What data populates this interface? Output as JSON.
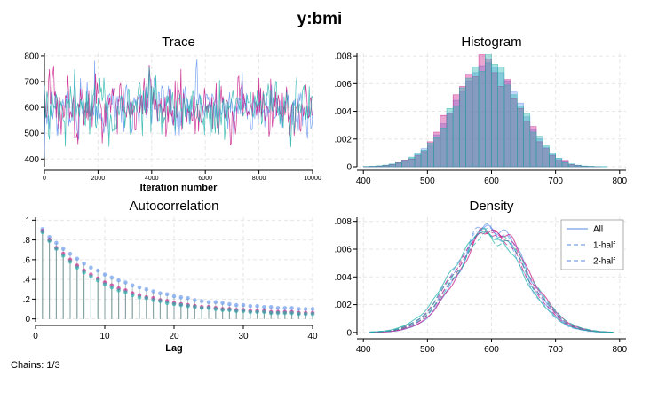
{
  "title": "y:bmi",
  "note": "Chains: 1/3",
  "colors": {
    "chain1": "#6495ed",
    "chain2": "#c71585",
    "chain3": "#20b2aa",
    "grid": "#e6e6e6"
  },
  "chart_data": [
    {
      "id": "trace",
      "type": "line",
      "title": "Trace",
      "xlabel": "Iteration number",
      "ylabel": "",
      "xlim": [
        0,
        10000
      ],
      "ylim": [
        370,
        810
      ],
      "xticks": [
        0,
        2000,
        4000,
        6000,
        8000,
        10000
      ],
      "xtick_labels": [
        "0",
        "2000",
        "4000",
        "6000",
        "8000",
        "10000"
      ],
      "yticks": [
        400,
        500,
        600,
        700,
        800
      ],
      "ytick_labels": [
        "400",
        "500",
        "600",
        "700",
        "800"
      ],
      "series_sim": {
        "mean": 600,
        "sd": 55
      }
    },
    {
      "id": "histogram",
      "type": "bar",
      "title": "Histogram",
      "xlabel": "",
      "ylabel": "",
      "xlim": [
        390,
        810
      ],
      "ylim": [
        0,
        0.0082
      ],
      "xticks": [
        400,
        500,
        600,
        700,
        800
      ],
      "xtick_labels": [
        "400",
        "500",
        "600",
        "700",
        "800"
      ],
      "yticks": [
        0,
        0.002,
        0.004,
        0.006,
        0.008
      ],
      "ytick_labels": [
        "0",
        ".002",
        ".004",
        ".006",
        ".008"
      ],
      "bin_start": 400,
      "bin_width": 10,
      "series": [
        {
          "name": "",
          "values": [
            2e-05,
            4e-05,
            6e-05,
            0.0001,
            0.00015,
            0.00025,
            0.0004,
            0.0006,
            0.0009,
            0.0013,
            0.0016,
            0.0023,
            0.0031,
            0.0039,
            0.0048,
            0.0054,
            0.0062,
            0.0068,
            0.0073,
            0.0075,
            0.0072,
            0.0068,
            0.0062,
            0.0054,
            0.0046,
            0.0036,
            0.0027,
            0.002,
            0.0014,
            0.0009,
            0.0006,
            0.00035,
            0.0002,
            0.0001,
            5e-05,
            3e-05,
            1e-05,
            1e-05,
            0,
            0
          ]
        },
        {
          "name": "",
          "values": [
            1e-05,
            3e-05,
            5e-05,
            0.0001,
            0.00018,
            0.0003,
            0.00045,
            0.00055,
            0.0008,
            0.0011,
            0.0018,
            0.0025,
            0.0037,
            0.0038,
            0.0052,
            0.0058,
            0.0067,
            0.0065,
            0.0081,
            0.0078,
            0.0068,
            0.0058,
            0.0063,
            0.0049,
            0.0042,
            0.0033,
            0.0029,
            0.0018,
            0.0013,
            0.0008,
            0.0005,
            0.0004,
            0.00015,
            8e-05,
            4e-05,
            2e-05,
            1e-05,
            0,
            0,
            0
          ]
        },
        {
          "name": "",
          "values": [
            2e-05,
            3e-05,
            7e-05,
            0.00012,
            0.0002,
            0.00028,
            0.0004,
            0.0007,
            0.001,
            0.0012,
            0.0017,
            0.0021,
            0.0028,
            0.0042,
            0.0044,
            0.0057,
            0.0064,
            0.0072,
            0.0069,
            0.0081,
            0.0074,
            0.0072,
            0.0059,
            0.0052,
            0.0044,
            0.0038,
            0.0025,
            0.0022,
            0.0015,
            0.001,
            0.0006,
            0.0003,
            0.0002,
            0.00012,
            5e-05,
            3e-05,
            1e-05,
            1e-05,
            0,
            0
          ]
        }
      ]
    },
    {
      "id": "autocorrelation",
      "type": "scatter",
      "title": "Autocorrelation",
      "xlabel": "Lag",
      "ylabel": "",
      "xlim": [
        0,
        40
      ],
      "ylim": [
        -0.03,
        1.03
      ],
      "xticks": [
        0,
        10,
        20,
        30,
        40
      ],
      "xtick_labels": [
        "0",
        "10",
        "20",
        "30",
        "40"
      ],
      "yticks": [
        0,
        0.2,
        0.4,
        0.6,
        0.8,
        1
      ],
      "ytick_labels": [
        "0",
        ".2",
        ".4",
        ".6",
        ".8",
        "1"
      ],
      "x": [
        1,
        2,
        3,
        4,
        5,
        6,
        7,
        8,
        9,
        10,
        11,
        12,
        13,
        14,
        15,
        16,
        17,
        18,
        19,
        20,
        21,
        22,
        23,
        24,
        25,
        26,
        27,
        28,
        29,
        30,
        31,
        32,
        33,
        34,
        35,
        36,
        37,
        38,
        39,
        40
      ],
      "series": [
        {
          "name": "",
          "values": [
            0.91,
            0.83,
            0.77,
            0.71,
            0.66,
            0.61,
            0.56,
            0.52,
            0.49,
            0.45,
            0.42,
            0.39,
            0.37,
            0.34,
            0.32,
            0.3,
            0.28,
            0.26,
            0.25,
            0.23,
            0.22,
            0.21,
            0.19,
            0.18,
            0.17,
            0.17,
            0.16,
            0.15,
            0.14,
            0.14,
            0.13,
            0.13,
            0.12,
            0.12,
            0.11,
            0.11,
            0.11,
            0.1,
            0.1,
            0.1
          ]
        },
        {
          "name": "",
          "values": [
            0.89,
            0.8,
            0.72,
            0.66,
            0.6,
            0.54,
            0.49,
            0.45,
            0.41,
            0.37,
            0.34,
            0.31,
            0.29,
            0.26,
            0.24,
            0.22,
            0.21,
            0.19,
            0.18,
            0.16,
            0.15,
            0.14,
            0.13,
            0.12,
            0.12,
            0.11,
            0.1,
            0.1,
            0.09,
            0.09,
            0.08,
            0.08,
            0.08,
            0.07,
            0.07,
            0.07,
            0.07,
            0.06,
            0.06,
            0.06
          ]
        },
        {
          "name": "",
          "values": [
            0.88,
            0.79,
            0.71,
            0.64,
            0.58,
            0.52,
            0.47,
            0.43,
            0.39,
            0.35,
            0.32,
            0.29,
            0.27,
            0.24,
            0.22,
            0.21,
            0.19,
            0.18,
            0.16,
            0.15,
            0.14,
            0.13,
            0.12,
            0.11,
            0.11,
            0.1,
            0.09,
            0.09,
            0.08,
            0.08,
            0.07,
            0.07,
            0.07,
            0.06,
            0.06,
            0.06,
            0.06,
            0.05,
            0.05,
            0.05
          ]
        }
      ]
    },
    {
      "id": "density",
      "type": "line",
      "title": "Density",
      "xlabel": "",
      "ylabel": "",
      "xlim": [
        390,
        810
      ],
      "ylim": [
        -0.0002,
        0.0083
      ],
      "xticks": [
        400,
        500,
        600,
        700,
        800
      ],
      "xtick_labels": [
        "400",
        "500",
        "600",
        "700",
        "800"
      ],
      "yticks": [
        0,
        0.002,
        0.004,
        0.006,
        0.008
      ],
      "ytick_labels": [
        "0",
        ".002",
        ".004",
        ".006",
        ".008"
      ],
      "legend": [
        "All",
        "1-half",
        "2-half"
      ],
      "legend_position": "top-right",
      "curve_sim": {
        "mean": 598,
        "sd": 54,
        "x_range": [
          410,
          790
        ]
      }
    }
  ]
}
